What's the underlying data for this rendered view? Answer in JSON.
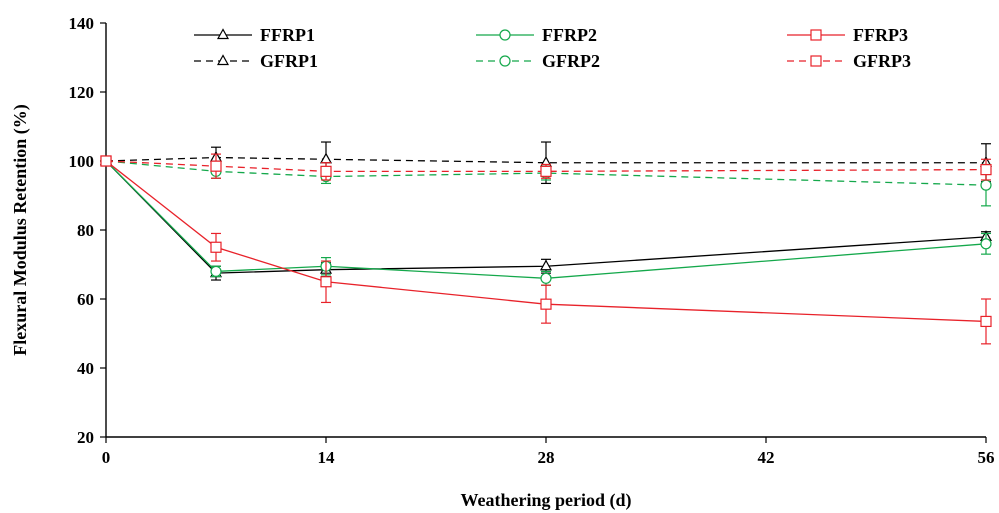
{
  "chart_data": {
    "type": "line",
    "xlabel": "Weathering period (d)",
    "ylabel": "Flexural Modulus Retention (%)",
    "xlim": [
      0,
      56
    ],
    "ylim": [
      20,
      140
    ],
    "xticks": [
      0,
      14,
      28,
      42,
      56
    ],
    "yticks": [
      20,
      40,
      60,
      80,
      100,
      120,
      140
    ],
    "grid": false,
    "legend_position": "top",
    "series": [
      {
        "name": "FFRP1",
        "color": "#000000",
        "dashed": false,
        "marker": "triangle",
        "x": [
          0,
          7,
          14,
          28,
          56
        ],
        "y": [
          100,
          67.5,
          68.5,
          69.5,
          78
        ],
        "err": [
          0,
          2,
          2,
          2,
          1.5
        ]
      },
      {
        "name": "FFRP2",
        "color": "#14A84B",
        "dashed": false,
        "marker": "circle",
        "x": [
          0,
          7,
          14,
          28,
          56
        ],
        "y": [
          100,
          68,
          69.5,
          66,
          76
        ],
        "err": [
          0,
          1.5,
          2.5,
          2,
          3
        ]
      },
      {
        "name": "FFRP3",
        "color": "#E8222A",
        "dashed": false,
        "marker": "square",
        "x": [
          0,
          7,
          14,
          28,
          56
        ],
        "y": [
          100,
          75,
          65,
          58.5,
          53.5
        ],
        "err": [
          0,
          4,
          6,
          5.5,
          6.5
        ]
      },
      {
        "name": "GFRP1",
        "color": "#000000",
        "dashed": true,
        "marker": "triangle",
        "x": [
          0,
          7,
          14,
          28,
          56
        ],
        "y": [
          100,
          101,
          100.5,
          99.5,
          99.5
        ],
        "err": [
          0,
          3,
          5,
          6,
          5.5
        ]
      },
      {
        "name": "GFRP2",
        "color": "#14A84B",
        "dashed": true,
        "marker": "circle",
        "x": [
          0,
          7,
          14,
          28,
          56
        ],
        "y": [
          100,
          97,
          95.5,
          96.5,
          93
        ],
        "err": [
          0,
          2,
          2,
          2,
          6
        ]
      },
      {
        "name": "GFRP3",
        "color": "#E8222A",
        "dashed": true,
        "marker": "square",
        "x": [
          0,
          7,
          14,
          28,
          56
        ],
        "y": [
          100,
          98.5,
          97,
          97,
          97.5
        ],
        "err": [
          0,
          3.5,
          2.5,
          2,
          3
        ]
      }
    ]
  }
}
